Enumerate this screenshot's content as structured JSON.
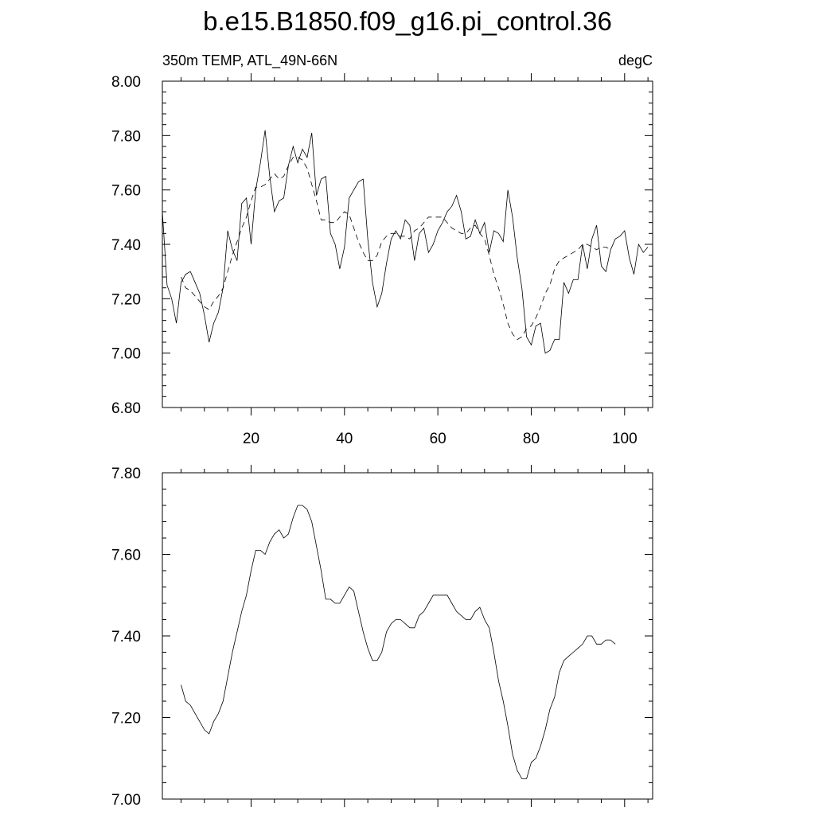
{
  "title": "b.e15.B1850.f09_g16.pi_control.36",
  "top_panel": {
    "left_label": "350m TEMP, ATL_49N-66N",
    "right_label": "degC"
  },
  "chart_data": [
    {
      "type": "line",
      "xlim": [
        1,
        106
      ],
      "ylim": [
        6.8,
        8.0
      ],
      "y_ticks": [
        "6.80",
        "7.00",
        "7.20",
        "7.40",
        "7.60",
        "7.80",
        "8.00"
      ],
      "x_ticks": [
        "20",
        "40",
        "60",
        "80",
        "100"
      ],
      "x_tick_values": [
        20,
        40,
        60,
        80,
        100
      ],
      "series": [
        {
          "style": "solid",
          "x_start": 1,
          "values": [
            7.52,
            7.25,
            7.2,
            7.11,
            7.26,
            7.29,
            7.3,
            7.26,
            7.22,
            7.14,
            7.04,
            7.11,
            7.15,
            7.24,
            7.45,
            7.38,
            7.34,
            7.55,
            7.57,
            7.4,
            7.6,
            7.7,
            7.82,
            7.65,
            7.52,
            7.56,
            7.57,
            7.69,
            7.76,
            7.7,
            7.75,
            7.72,
            7.81,
            7.58,
            7.64,
            7.65,
            7.44,
            7.4,
            7.31,
            7.39,
            7.57,
            7.6,
            7.63,
            7.64,
            7.42,
            7.26,
            7.17,
            7.22,
            7.33,
            7.42,
            7.45,
            7.42,
            7.49,
            7.47,
            7.34,
            7.44,
            7.46,
            7.37,
            7.4,
            7.45,
            7.48,
            7.52,
            7.54,
            7.58,
            7.52,
            7.42,
            7.43,
            7.49,
            7.44,
            7.48,
            7.37,
            7.45,
            7.44,
            7.41,
            7.6,
            7.5,
            7.35,
            7.24,
            7.06,
            7.03,
            7.1,
            7.11,
            7.0,
            7.01,
            7.05,
            7.05,
            7.26,
            7.22,
            7.27,
            7.27,
            7.4,
            7.31,
            7.42,
            7.47,
            7.32,
            7.3,
            7.38,
            7.42,
            7.43,
            7.45,
            7.35,
            7.29,
            7.4,
            7.37,
            7.39
          ]
        },
        {
          "style": "dashed",
          "x_start": 5,
          "values": [
            7.28,
            7.24,
            7.23,
            7.21,
            7.19,
            7.17,
            7.16,
            7.19,
            7.21,
            7.24,
            7.3,
            7.36,
            7.41,
            7.46,
            7.5,
            7.56,
            7.61,
            7.61,
            7.62,
            7.64,
            7.66,
            7.64,
            7.65,
            7.69,
            7.72,
            7.72,
            7.71,
            7.68,
            7.62,
            7.56,
            7.49,
            7.49,
            7.48,
            7.48,
            7.5,
            7.52,
            7.51,
            7.46,
            7.41,
            7.37,
            7.34,
            7.34,
            7.36,
            7.41,
            7.43,
            7.44,
            7.44,
            7.43,
            7.43,
            7.42,
            7.45,
            7.46,
            7.48,
            7.5,
            7.5,
            7.5,
            7.5,
            7.48,
            7.46,
            7.45,
            7.44,
            7.44,
            7.46,
            7.47,
            7.44,
            7.42,
            7.36,
            7.29,
            7.24,
            7.18,
            7.11,
            7.07,
            7.05,
            7.06,
            7.09,
            7.1,
            7.13,
            7.17,
            7.22,
            7.25,
            7.31,
            7.34,
            7.35,
            7.36,
            7.37,
            7.38,
            7.4,
            7.4,
            7.39,
            7.38,
            7.39,
            7.39,
            7.38
          ]
        }
      ]
    },
    {
      "type": "line",
      "xlim": [
        1,
        106
      ],
      "ylim": [
        7.0,
        7.8
      ],
      "y_ticks": [
        "7.00",
        "7.20",
        "7.40",
        "7.60",
        "7.80"
      ],
      "x_tick_values": [
        20,
        40,
        60,
        80,
        100
      ],
      "series": [
        {
          "style": "solid",
          "x_start": 5,
          "values": [
            7.28,
            7.24,
            7.23,
            7.21,
            7.19,
            7.17,
            7.16,
            7.19,
            7.21,
            7.24,
            7.3,
            7.36,
            7.41,
            7.46,
            7.5,
            7.56,
            7.61,
            7.61,
            7.6,
            7.63,
            7.65,
            7.66,
            7.64,
            7.65,
            7.69,
            7.72,
            7.72,
            7.71,
            7.68,
            7.62,
            7.56,
            7.49,
            7.49,
            7.48,
            7.48,
            7.5,
            7.52,
            7.51,
            7.46,
            7.41,
            7.37,
            7.34,
            7.34,
            7.36,
            7.41,
            7.43,
            7.44,
            7.44,
            7.43,
            7.42,
            7.42,
            7.45,
            7.46,
            7.48,
            7.5,
            7.5,
            7.5,
            7.5,
            7.48,
            7.46,
            7.45,
            7.44,
            7.44,
            7.46,
            7.47,
            7.44,
            7.42,
            7.36,
            7.29,
            7.24,
            7.18,
            7.11,
            7.07,
            7.05,
            7.05,
            7.09,
            7.1,
            7.13,
            7.17,
            7.22,
            7.25,
            7.31,
            7.34,
            7.35,
            7.36,
            7.37,
            7.38,
            7.4,
            7.4,
            7.38,
            7.38,
            7.39,
            7.39,
            7.38
          ]
        }
      ]
    }
  ]
}
